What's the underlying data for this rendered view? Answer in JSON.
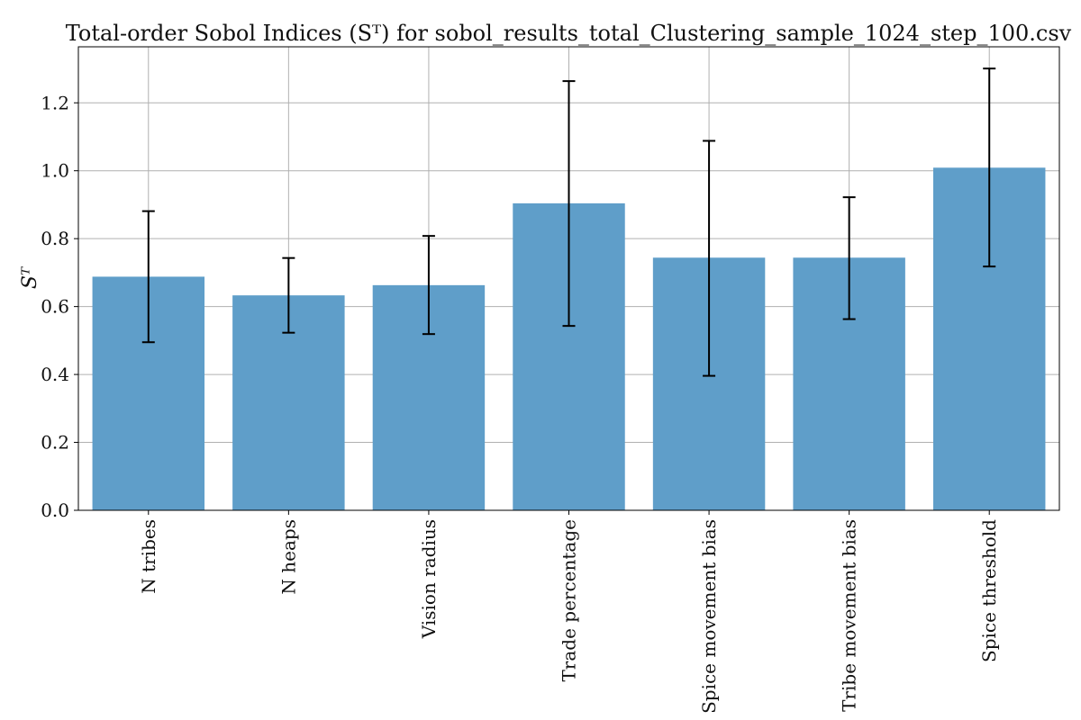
{
  "chart_data": {
    "type": "bar",
    "title": "Total-order Sobol Indices (Sᵀ) for sobol_results_total_Clustering_sample_1024_step_100.csv",
    "xlabel": "",
    "ylabel": "Sᵀ",
    "categories": [
      "N tribes",
      "N heaps",
      "Vision radius",
      "Trade percentage",
      "Spice movement bias",
      "Tribe movement bias",
      "Spice threshold"
    ],
    "values": [
      0.688,
      0.633,
      0.663,
      0.904,
      0.744,
      0.744,
      1.009
    ],
    "error_low": [
      0.495,
      0.523,
      0.519,
      0.543,
      0.396,
      0.563,
      0.718
    ],
    "error_high": [
      0.881,
      0.743,
      0.808,
      1.264,
      1.088,
      0.922,
      1.301
    ],
    "ylim": [
      0.0,
      1.365
    ],
    "yticks": [
      "0.0",
      "0.2",
      "0.4",
      "0.6",
      "0.8",
      "1.0",
      "1.2"
    ],
    "grid": true,
    "bar_color": "#5f9ec9",
    "error_color": "#000000"
  }
}
